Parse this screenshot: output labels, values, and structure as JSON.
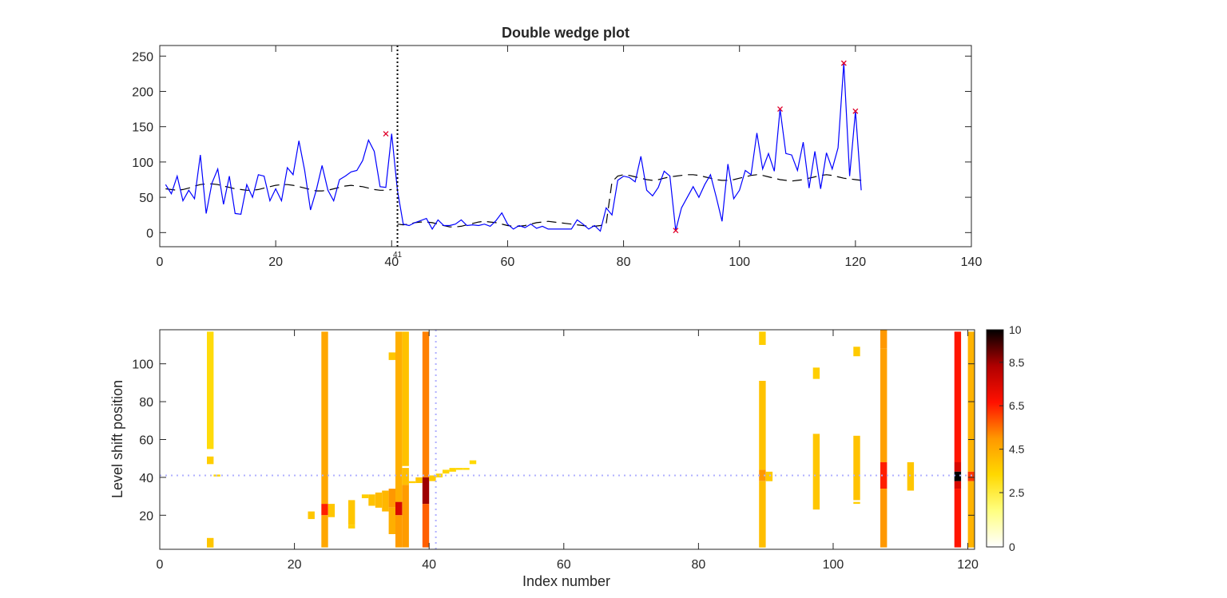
{
  "chart_data": [
    {
      "type": "line",
      "title": "Double wedge plot",
      "xlabel": "",
      "ylabel": "",
      "xlim": [
        0,
        140
      ],
      "ylim": [
        -20,
        265
      ],
      "xticks": [
        "0",
        "20",
        "40",
        "60",
        "80",
        "100",
        "120",
        "140"
      ],
      "yticks": [
        "0",
        "50",
        "100",
        "150",
        "200",
        "250"
      ],
      "grid": false,
      "colors": {
        "series": "#0000ff",
        "fit": "#000000",
        "marker": "#e0002a",
        "vline": "#000000"
      },
      "series": [
        {
          "x": [
            1,
            2,
            3,
            4,
            5,
            6,
            7,
            8,
            9,
            10,
            11,
            12,
            13,
            14,
            15,
            16,
            17,
            18,
            19,
            20,
            21,
            22,
            23,
            24,
            25,
            26,
            27,
            28,
            29,
            30,
            31,
            32,
            33,
            34,
            35,
            36,
            37,
            38,
            39,
            40,
            41,
            42,
            43,
            44,
            45,
            46,
            47,
            48,
            49,
            50,
            51,
            52,
            53,
            54,
            55,
            56,
            57,
            58,
            59,
            60,
            61,
            62,
            63,
            64,
            65,
            66,
            67,
            68,
            69,
            70,
            71,
            72,
            73,
            74,
            75,
            76,
            77,
            78,
            79,
            80,
            81,
            82,
            83,
            84,
            85,
            86,
            87,
            88,
            89,
            90,
            91,
            92,
            93,
            94,
            95,
            96,
            97,
            98,
            99,
            100,
            101,
            102,
            103,
            104,
            105,
            106,
            107,
            108,
            109,
            110,
            111,
            112,
            113,
            114,
            115,
            116,
            117,
            118,
            119,
            120,
            121
          ],
          "y": [
            68,
            55,
            80,
            45,
            60,
            48,
            110,
            27,
            70,
            90,
            40,
            80,
            27,
            26,
            68,
            50,
            82,
            80,
            45,
            62,
            45,
            92,
            82,
            130,
            88,
            32,
            60,
            95,
            60,
            45,
            75,
            80,
            86,
            88,
            102,
            131,
            115,
            65,
            64,
            140,
            60,
            12,
            10,
            14,
            17,
            20,
            5,
            18,
            10,
            10,
            12,
            18,
            10,
            11,
            10,
            12,
            9,
            17,
            28,
            12,
            5,
            10,
            7,
            12,
            6,
            9,
            5,
            5,
            5,
            5,
            5,
            18,
            12,
            5,
            10,
            2,
            35,
            25,
            74,
            80,
            78,
            72,
            108,
            60,
            52,
            64,
            87,
            80,
            3,
            35,
            50,
            65,
            50,
            68,
            82,
            50,
            16,
            97,
            48,
            60,
            88,
            82,
            141,
            90,
            112,
            87,
            175,
            112,
            110,
            88,
            128,
            63,
            115,
            62,
            113,
            90,
            120,
            240,
            80,
            172,
            60
          ]
        },
        {
          "x": [
            1,
            2,
            3,
            4,
            5,
            6,
            7,
            8,
            9,
            10,
            11,
            12,
            13,
            14,
            15,
            16,
            17,
            18,
            19,
            20,
            21,
            22,
            23,
            24,
            25,
            26,
            27,
            28,
            29,
            30,
            31,
            32,
            33,
            34,
            35,
            36,
            37,
            38,
            39,
            40,
            41,
            42,
            43,
            44,
            45,
            46,
            47,
            48,
            49,
            50,
            51,
            52,
            53,
            54,
            55,
            56,
            57,
            58,
            59,
            60,
            61,
            62,
            63,
            64,
            65,
            66,
            67,
            68,
            69,
            70,
            71,
            72,
            73,
            74,
            75,
            76,
            77,
            78,
            79,
            80,
            81,
            82,
            83,
            84,
            85,
            86,
            87,
            88,
            89,
            90,
            91,
            92,
            93,
            94,
            95,
            96,
            97,
            98,
            99,
            100,
            101,
            102,
            103,
            104,
            105,
            106,
            107,
            108,
            109,
            110,
            111,
            112,
            113,
            114,
            115,
            116,
            117,
            118,
            119,
            120,
            121
          ],
          "y": [
            62,
            61,
            60,
            61,
            63,
            66,
            68,
            69,
            69,
            68,
            66,
            64,
            62,
            61,
            60,
            60,
            61,
            63,
            65,
            67,
            68,
            68,
            67,
            65,
            63,
            61,
            59,
            59,
            60,
            62,
            64,
            66,
            67,
            66,
            65,
            63,
            61,
            60,
            60,
            61,
            12,
            11,
            12,
            14,
            15,
            15,
            14,
            12,
            10,
            8,
            8,
            9,
            11,
            13,
            15,
            16,
            15,
            14,
            12,
            10,
            9,
            9,
            10,
            12,
            14,
            15,
            16,
            15,
            14,
            13,
            12,
            11,
            10,
            9,
            9,
            10,
            12,
            72,
            80,
            82,
            81,
            79,
            77,
            75,
            74,
            75,
            77,
            79,
            80,
            81,
            82,
            82,
            81,
            79,
            77,
            75,
            74,
            74,
            75,
            77,
            79,
            81,
            82,
            81,
            79,
            77,
            75,
            74,
            73,
            74,
            75,
            77,
            79,
            81,
            82,
            81,
            79,
            77,
            76,
            75,
            74
          ]
        }
      ],
      "markers": [
        {
          "x": 39,
          "y": 140
        },
        {
          "x": 89,
          "y": 3
        },
        {
          "x": 107,
          "y": 175
        },
        {
          "x": 118,
          "y": 240
        },
        {
          "x": 120,
          "y": 172
        }
      ],
      "vline": {
        "x": 41,
        "label": "41"
      }
    },
    {
      "type": "heatmap",
      "title": "",
      "xlabel": "Index number",
      "ylabel": "Level shift position",
      "xlim": [
        0,
        121
      ],
      "ylim": [
        2,
        118
      ],
      "xticks": [
        "0",
        "20",
        "40",
        "60",
        "80",
        "100",
        "120"
      ],
      "yticks": [
        "20",
        "40",
        "60",
        "80",
        "100"
      ],
      "colorbar": {
        "range": [
          0,
          10
        ],
        "ticks": [
          "0",
          "2.5",
          "4.5",
          "6.5",
          "8.5",
          "10"
        ],
        "colors": [
          "#ffffff",
          "#ffff80",
          "#ffd800",
          "#ff9800",
          "#ff1000",
          "#b00000",
          "#000000"
        ]
      },
      "reference": {
        "x": 41,
        "y": 41,
        "color": "#b0b0ff"
      },
      "columns": [
        {
          "x": 7.5,
          "segments": [
            {
              "y0": 55,
              "y1": 117,
              "v": 3.2
            },
            {
              "y0": 47,
              "y1": 51,
              "v": 3.6
            },
            {
              "y0": 3,
              "y1": 8,
              "v": 3.8
            }
          ]
        },
        {
          "x": 8.5,
          "segments": [
            {
              "y0": 40.5,
              "y1": 41.5,
              "v": 3.4
            }
          ]
        },
        {
          "x": 22.5,
          "segments": [
            {
              "y0": 18,
              "y1": 22,
              "v": 3.8
            }
          ]
        },
        {
          "x": 24.5,
          "segments": [
            {
              "y0": 26,
              "y1": 117,
              "v": 4.6
            },
            {
              "y0": 20,
              "y1": 26,
              "v": 6.5
            },
            {
              "y0": 3,
              "y1": 20,
              "v": 4.6
            }
          ]
        },
        {
          "x": 25.5,
          "segments": [
            {
              "y0": 19,
              "y1": 26,
              "v": 3.8
            }
          ]
        },
        {
          "x": 28.5,
          "segments": [
            {
              "y0": 13,
              "y1": 15,
              "v": 3.6
            },
            {
              "y0": 15,
              "y1": 28,
              "v": 3.8
            }
          ]
        },
        {
          "x": 30.5,
          "segments": [
            {
              "y0": 29,
              "y1": 31,
              "v": 3.6
            }
          ]
        },
        {
          "x": 31.5,
          "segments": [
            {
              "y0": 25,
              "y1": 31,
              "v": 3.9
            }
          ]
        },
        {
          "x": 32.5,
          "segments": [
            {
              "y0": 24,
              "y1": 32,
              "v": 4.1
            }
          ]
        },
        {
          "x": 33.5,
          "segments": [
            {
              "y0": 22,
              "y1": 33,
              "v": 4.2
            }
          ]
        },
        {
          "x": 34.5,
          "segments": [
            {
              "y0": 102,
              "y1": 106,
              "v": 3.8
            },
            {
              "y0": 24,
              "y1": 34,
              "v": 5.0
            },
            {
              "y0": 10,
              "y1": 24,
              "v": 4.4
            }
          ]
        },
        {
          "x": 35.5,
          "segments": [
            {
              "y0": 27,
              "y1": 117,
              "v": 4.4
            },
            {
              "y0": 20,
              "y1": 27,
              "v": 7.5
            },
            {
              "y0": 3,
              "y1": 20,
              "v": 4.9
            }
          ]
        },
        {
          "x": 36.5,
          "segments": [
            {
              "y0": 46,
              "y1": 117,
              "v": 3.9
            },
            {
              "y0": 36,
              "y1": 45,
              "v": 4.0
            },
            {
              "y0": 3,
              "y1": 36,
              "v": 4.9
            }
          ]
        },
        {
          "x": 37.5,
          "segments": [
            {
              "y0": 37,
              "y1": 38,
              "v": 3.6
            }
          ]
        },
        {
          "x": 38.5,
          "segments": [
            {
              "y0": 37,
              "y1": 40,
              "v": 3.8
            }
          ]
        },
        {
          "x": 39.5,
          "segments": [
            {
              "y0": 40,
              "y1": 117,
              "v": 5.3
            },
            {
              "y0": 26,
              "y1": 40,
              "v": 8.5
            },
            {
              "y0": 3,
              "y1": 26,
              "v": 5.7
            }
          ]
        },
        {
          "x": 40.5,
          "segments": [
            {
              "y0": 38,
              "y1": 41,
              "v": 3.7
            }
          ]
        },
        {
          "x": 41.5,
          "segments": [
            {
              "y0": 40,
              "y1": 42,
              "v": 3.4
            }
          ]
        },
        {
          "x": 42.5,
          "segments": [
            {
              "y0": 42,
              "y1": 44,
              "v": 3.4
            }
          ]
        },
        {
          "x": 43.5,
          "segments": [
            {
              "y0": 43,
              "y1": 45,
              "v": 3.4
            }
          ]
        },
        {
          "x": 44.5,
          "segments": [
            {
              "y0": 44,
              "y1": 45,
              "v": 3.4
            }
          ]
        },
        {
          "x": 45.5,
          "segments": [
            {
              "y0": 44,
              "y1": 45,
              "v": 3.3
            }
          ]
        },
        {
          "x": 46.5,
          "segments": [
            {
              "y0": 47,
              "y1": 49,
              "v": 3.3
            }
          ]
        },
        {
          "x": 89.5,
          "segments": [
            {
              "y0": 110,
              "y1": 117,
              "v": 3.6
            },
            {
              "y0": 44,
              "y1": 91,
              "v": 3.9
            },
            {
              "y0": 38,
              "y1": 44,
              "v": 5.0
            },
            {
              "y0": 3,
              "y1": 38,
              "v": 4.0
            }
          ]
        },
        {
          "x": 90.5,
          "segments": [
            {
              "y0": 38,
              "y1": 43,
              "v": 3.7
            }
          ]
        },
        {
          "x": 97.5,
          "segments": [
            {
              "y0": 92,
              "y1": 98,
              "v": 3.6
            },
            {
              "y0": 23,
              "y1": 63,
              "v": 3.8
            }
          ]
        },
        {
          "x": 103.5,
          "segments": [
            {
              "y0": 104,
              "y1": 109,
              "v": 3.7
            },
            {
              "y0": 28,
              "y1": 62,
              "v": 3.9
            },
            {
              "y0": 26,
              "y1": 27,
              "v": 3.6
            }
          ]
        },
        {
          "x": 107.5,
          "segments": [
            {
              "y0": 108,
              "y1": 118,
              "v": 5.0
            },
            {
              "y0": 48,
              "y1": 108,
              "v": 4.8
            },
            {
              "y0": 34,
              "y1": 48,
              "v": 6.5
            },
            {
              "y0": 3,
              "y1": 34,
              "v": 5.0
            }
          ]
        },
        {
          "x": 111.5,
          "segments": [
            {
              "y0": 33,
              "y1": 48,
              "v": 3.8
            }
          ]
        },
        {
          "x": 118.5,
          "segments": [
            {
              "y0": 48,
              "y1": 117,
              "v": 6.6
            },
            {
              "y0": 43,
              "y1": 48,
              "v": 7.5
            },
            {
              "y0": 38,
              "y1": 43,
              "v": 10
            },
            {
              "y0": 34,
              "y1": 38,
              "v": 7.5
            },
            {
              "y0": 3,
              "y1": 34,
              "v": 6.6
            }
          ]
        },
        {
          "x": 120.5,
          "segments": [
            {
              "y0": 43,
              "y1": 117,
              "v": 4.3
            },
            {
              "y0": 38,
              "y1": 43,
              "v": 6.2
            },
            {
              "y0": 3,
              "y1": 38,
              "v": 4.3
            }
          ]
        }
      ]
    }
  ]
}
